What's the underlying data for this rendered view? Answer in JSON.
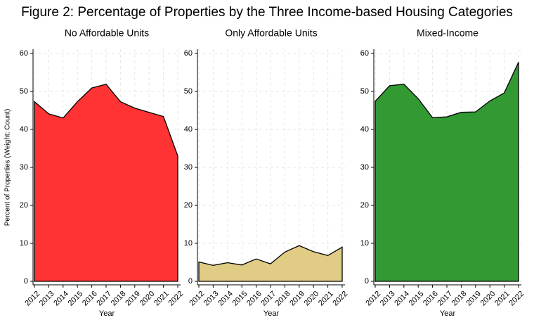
{
  "title": "Figure 2: Percentage of Properties by the Three Income-based Housing Categories",
  "chart_data": [
    {
      "type": "area",
      "title": "No Affordable Units",
      "ylabel": "Percent of Properties (Weight: Count)",
      "xlabel": "Year",
      "x": [
        2012,
        2013,
        2014,
        2015,
        2016,
        2017,
        2018,
        2019,
        2020,
        2021,
        2022
      ],
      "values": [
        47.3,
        44.1,
        43.0,
        47.3,
        50.9,
        51.9,
        47.3,
        45.6,
        44.5,
        43.4,
        33.0
      ],
      "color": "#ff3333",
      "xlim": [
        2012,
        2022
      ],
      "xticks": [
        2012,
        2013,
        2014,
        2015,
        2016,
        2017,
        2018,
        2019,
        2020,
        2021,
        2022
      ],
      "ylim": [
        0,
        60
      ],
      "yticks": [
        0,
        10,
        20,
        30,
        40,
        50,
        60
      ],
      "grid": true
    },
    {
      "type": "area",
      "title": "Only Affordable Units",
      "xlabel": "Year",
      "x": [
        2012,
        2013,
        2014,
        2015,
        2016,
        2017,
        2018,
        2019,
        2020,
        2021,
        2022
      ],
      "values": [
        5.1,
        4.2,
        4.9,
        4.3,
        5.9,
        4.6,
        7.7,
        9.4,
        7.8,
        6.8,
        9.0
      ],
      "color": "#e1cc85",
      "xlim": [
        2012,
        2022
      ],
      "xticks": [
        2012,
        2013,
        2014,
        2015,
        2016,
        2017,
        2018,
        2019,
        2020,
        2021,
        2022
      ],
      "ylim": [
        0,
        60
      ],
      "yticks": [
        0,
        10,
        20,
        30,
        40,
        50,
        60
      ],
      "grid": true
    },
    {
      "type": "area",
      "title": "Mixed-Income",
      "xlabel": "Year",
      "x": [
        2012,
        2013,
        2014,
        2015,
        2016,
        2017,
        2018,
        2019,
        2020,
        2021,
        2022
      ],
      "values": [
        47.4,
        51.5,
        51.9,
        48.1,
        43.1,
        43.3,
        44.5,
        44.6,
        47.5,
        49.6,
        57.7
      ],
      "color": "#339933",
      "xlim": [
        2012,
        2022
      ],
      "xticks": [
        2012,
        2013,
        2014,
        2015,
        2016,
        2017,
        2018,
        2019,
        2020,
        2021,
        2022
      ],
      "ylim": [
        0,
        60
      ],
      "yticks": [
        0,
        10,
        20,
        30,
        40,
        50,
        60
      ],
      "grid": true
    }
  ]
}
